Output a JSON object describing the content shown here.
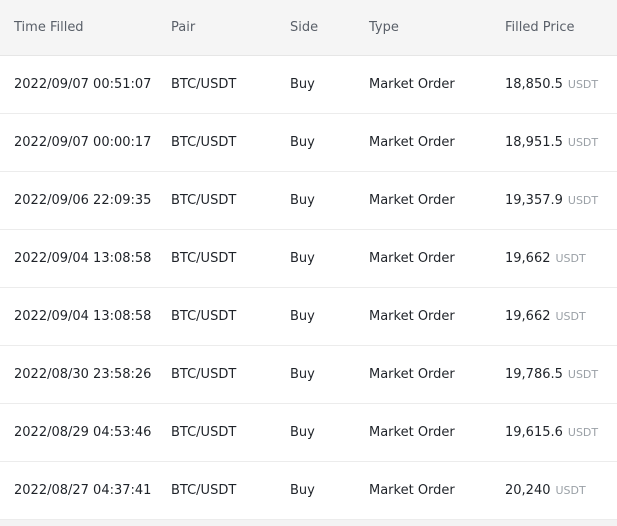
{
  "headers": {
    "time": "Time Filled",
    "pair": "Pair",
    "side": "Side",
    "type": "Type",
    "price": "Filled Price"
  },
  "rows": [
    {
      "time": "2022/09/07 00:51:07",
      "pair": "BTC/USDT",
      "side": "Buy",
      "type": "Market Order",
      "price": "18,850.5",
      "unit": "USDT"
    },
    {
      "time": "2022/09/07 00:00:17",
      "pair": "BTC/USDT",
      "side": "Buy",
      "type": "Market Order",
      "price": "18,951.5",
      "unit": "USDT"
    },
    {
      "time": "2022/09/06 22:09:35",
      "pair": "BTC/USDT",
      "side": "Buy",
      "type": "Market Order",
      "price": "19,357.9",
      "unit": "USDT"
    },
    {
      "time": "2022/09/04 13:08:58",
      "pair": "BTC/USDT",
      "side": "Buy",
      "type": "Market Order",
      "price": "19,662",
      "unit": "USDT"
    },
    {
      "time": "2022/09/04 13:08:58",
      "pair": "BTC/USDT",
      "side": "Buy",
      "type": "Market Order",
      "price": "19,662",
      "unit": "USDT"
    },
    {
      "time": "2022/08/30 23:58:26",
      "pair": "BTC/USDT",
      "side": "Buy",
      "type": "Market Order",
      "price": "19,786.5",
      "unit": "USDT"
    },
    {
      "time": "2022/08/29 04:53:46",
      "pair": "BTC/USDT",
      "side": "Buy",
      "type": "Market Order",
      "price": "19,615.6",
      "unit": "USDT"
    },
    {
      "time": "2022/08/27 04:37:41",
      "pair": "BTC/USDT",
      "side": "Buy",
      "type": "Market Order",
      "price": "20,240",
      "unit": "USDT"
    }
  ],
  "colors": {
    "buy": "#17b26a",
    "header_bg": "#f5f5f5"
  }
}
